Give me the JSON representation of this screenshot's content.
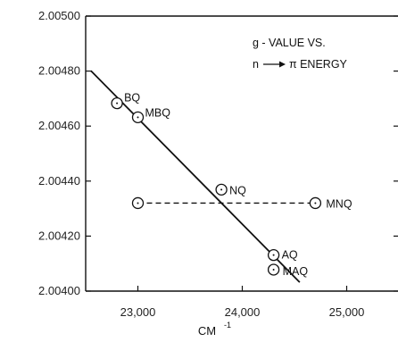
{
  "chart_data": {
    "type": "scatter",
    "title_line1": "g - VALUE  VS.",
    "title_line2_pre": "n",
    "title_line2_post": "π ENERGY",
    "xlabel_main": "CM",
    "xlabel_sup": "-1",
    "ylabel": "",
    "xlim": [
      22500,
      25500
    ],
    "ylim": [
      2.004,
      2.005
    ],
    "x_ticks": [
      23000,
      24000,
      25000
    ],
    "x_tick_labels": [
      "23,000",
      "24,000",
      "25,000"
    ],
    "y_ticks": [
      2.004,
      2.0042,
      2.0044,
      2.0046,
      2.0048,
      2.005
    ],
    "y_tick_labels": [
      "2.00400",
      "2.00420",
      "2.00440",
      "2.00460",
      "2.00480",
      "2.00500"
    ],
    "grid": false,
    "points": [
      {
        "label": "BQ",
        "x": 22800,
        "y": 2.004683
      },
      {
        "label": "MBQ",
        "x": 23000,
        "y": 2.004632
      },
      {
        "label": "NQ",
        "x": 23800,
        "y": 2.004369
      },
      {
        "label": "AQ",
        "x": 24300,
        "y": 2.004131
      },
      {
        "label": "MAQ",
        "x": 24300,
        "y": 2.004078
      },
      {
        "label": "",
        "x": 23000,
        "y": 2.00432
      },
      {
        "label": "MNQ",
        "x": 24700,
        "y": 2.00432
      }
    ],
    "fit_line": {
      "x": [
        22550,
        24550
      ],
      "y": [
        2.004801,
        2.004032
      ]
    },
    "dashed_line": {
      "x": [
        23000,
        24700
      ],
      "y": [
        2.00432,
        2.00432
      ]
    }
  }
}
